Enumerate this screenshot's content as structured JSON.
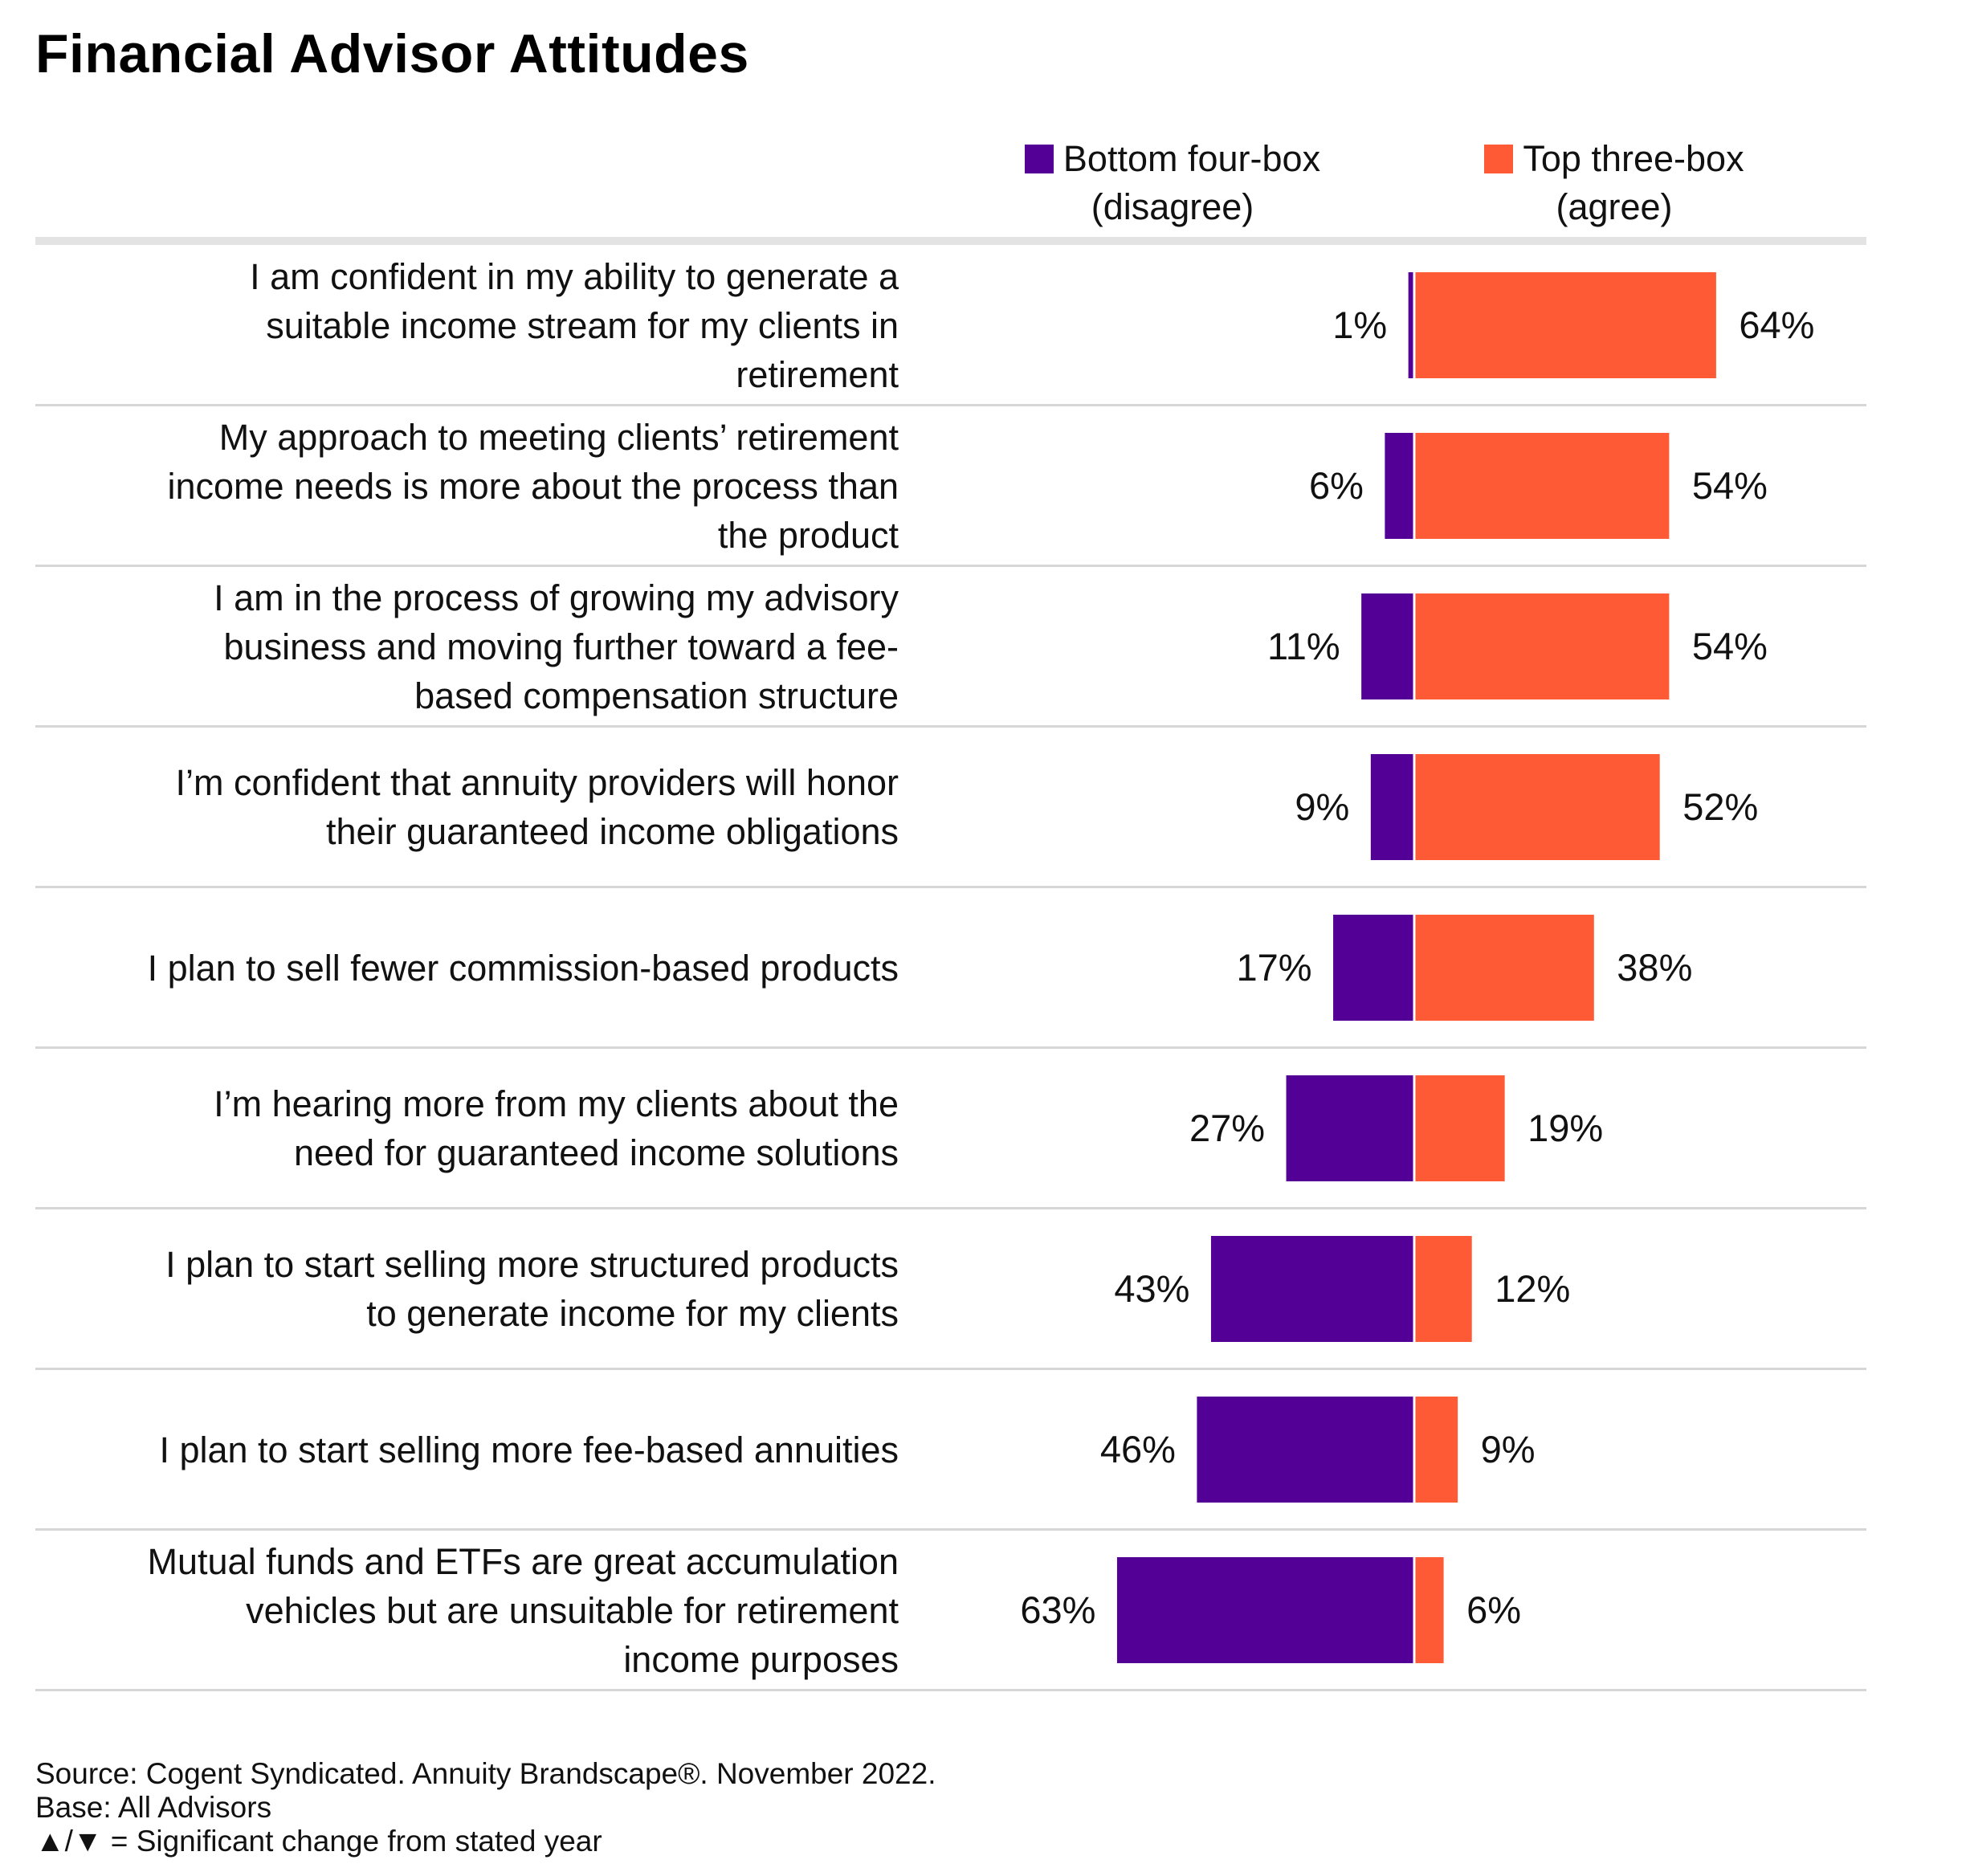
{
  "title": "Financial Advisor Attitudes",
  "legend": {
    "disagree_label": "Bottom four-box (disagree)",
    "agree_label": "Top three-box (agree)"
  },
  "colors": {
    "disagree": "#520096",
    "agree": "#ff5a36",
    "divider": "#d6d6d6",
    "topbar": "#e3e3e3"
  },
  "chart_data": {
    "type": "bar",
    "orientation": "horizontal-diverging",
    "title": "Financial Advisor Attitudes",
    "xlim": [
      0,
      100
    ],
    "categories": [
      "I am confident in my ability to generate a suitable income stream for my clients in retirement",
      "My approach to meeting clients’ retirement income needs is more about the process than the product",
      "I am in the process of growing my advisory business and moving further toward a fee-based compensation structure",
      "I’m confident that annuity providers will honor their guaranteed income obligations",
      "I plan to sell fewer commission-based products",
      "I’m hearing more from my clients about the need for guaranteed income solutions",
      "I plan to start selling more structured products to generate income for my clients",
      "I plan to start selling more fee-based annuities",
      "Mutual funds and ETFs are great accumulation vehicles but are unsuitable for retirement income purposes"
    ],
    "series": [
      {
        "name": "Bottom four-box (disagree)",
        "values": [
          1,
          6,
          11,
          9,
          17,
          27,
          43,
          46,
          63
        ],
        "labels": [
          "1%",
          "6%",
          "11%",
          "9%",
          "17%",
          "27%",
          "43%",
          "46%",
          "63%"
        ]
      },
      {
        "name": "Top three-box (agree)",
        "values": [
          64,
          54,
          54,
          52,
          38,
          19,
          12,
          9,
          6
        ],
        "labels": [
          "64%",
          "54%",
          "54%",
          "52%",
          "38%",
          "19%",
          "12%",
          "9%",
          "6%"
        ]
      }
    ],
    "grid": false,
    "legend_position": "top-right"
  },
  "rows": [
    {
      "label_lines": [
        "I am confident in my ability to generate a",
        "suitable income stream for my clients in",
        "retirement"
      ]
    },
    {
      "label_lines": [
        "My approach to meeting clients’ retirement",
        "income needs is more about the process than",
        "the product"
      ]
    },
    {
      "label_lines": [
        "I am in the process of growing my advisory",
        "business and moving further toward a fee-",
        "based compensation structure"
      ]
    },
    {
      "label_lines": [
        "I’m confident that annuity providers will honor",
        "their guaranteed income obligations"
      ]
    },
    {
      "label_lines": [
        "I plan to sell fewer commission-based products"
      ]
    },
    {
      "label_lines": [
        "I’m hearing more from my clients about the",
        "need for guaranteed income solutions"
      ]
    },
    {
      "label_lines": [
        "I plan to start selling more structured products",
        "to generate income for my clients"
      ]
    },
    {
      "label_lines": [
        "I plan to start selling more fee-based annuities"
      ]
    },
    {
      "label_lines": [
        "Mutual funds and ETFs are great accumulation",
        "vehicles but are unsuitable for retirement",
        "income purposes"
      ]
    }
  ],
  "footer": {
    "source": "Source: Cogent Syndicated. Annuity Brandscape®. November 2022.",
    "base": "Base: All Advisors",
    "note": "▲/▼ = Significant change from stated year"
  }
}
